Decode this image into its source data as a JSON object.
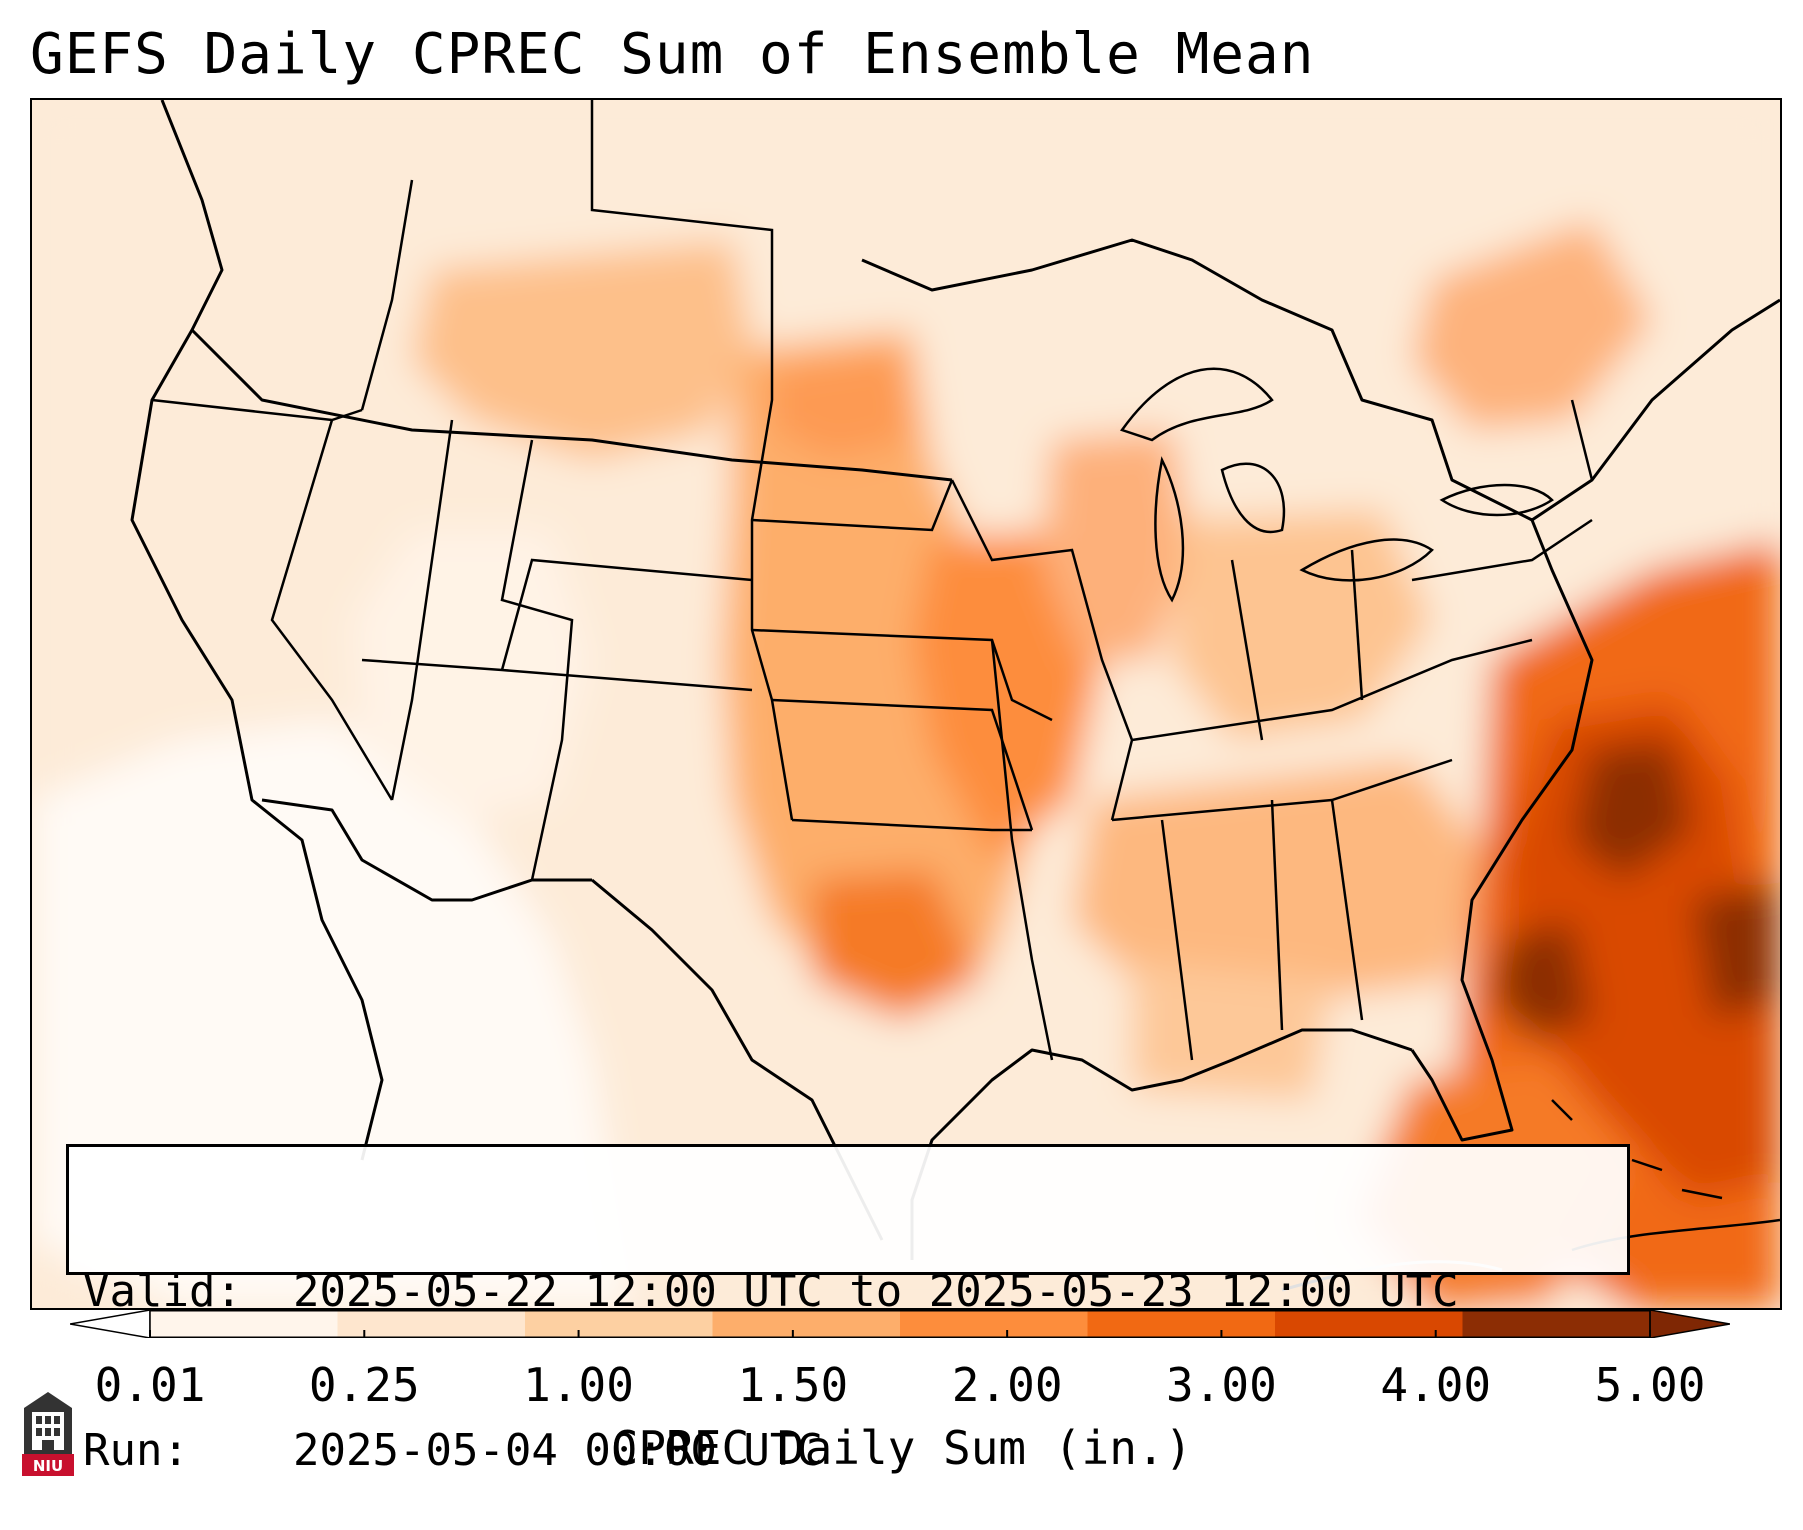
{
  "title": "GEFS Daily CPREC Sum of Ensemble Mean",
  "info": {
    "valid_label": "Valid:",
    "valid_value": "2025-05-22 12:00 UTC to 2025-05-23 12:00 UTC",
    "run_label": "Run:",
    "run_value": "2025-05-04 00:00 UTC"
  },
  "colorbar": {
    "label": "CPREC Daily Sum (in.)",
    "ticks": [
      "0.01",
      "0.25",
      "1.00",
      "1.50",
      "2.00",
      "3.00",
      "4.00",
      "5.00"
    ],
    "colors": [
      "#fff5eb",
      "#fee6ce",
      "#fdd0a2",
      "#fdae6b",
      "#fd8d3c",
      "#f16913",
      "#d94801",
      "#8c2d04"
    ],
    "under_color": "#ffffff",
    "over_color": "#7f2704"
  },
  "logo": {
    "text": "NIU"
  }
}
